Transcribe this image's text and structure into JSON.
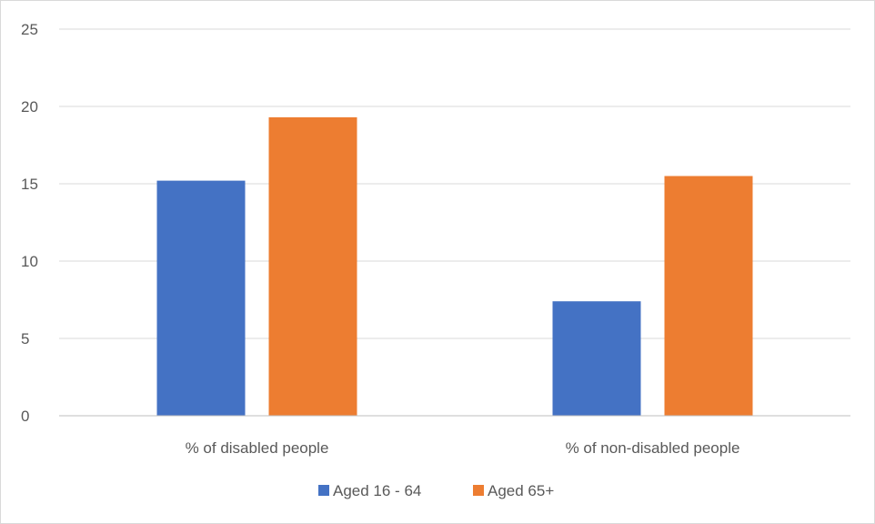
{
  "chart_data": {
    "type": "bar",
    "title": "",
    "xlabel": "",
    "ylabel": "",
    "categories": [
      "% of disabled people",
      "% of non-disabled people"
    ],
    "series": [
      {
        "name": "Aged 16 - 64",
        "color": "#4472C4",
        "values": [
          15.2,
          7.4
        ]
      },
      {
        "name": "Aged 65+",
        "color": "#ED7D31",
        "values": [
          19.3,
          15.5
        ]
      }
    ],
    "ylim": [
      0,
      25
    ],
    "yticks": [
      0,
      5,
      10,
      15,
      20,
      25
    ],
    "grid": true,
    "legend_position": "bottom",
    "gridline_color": "#d9d9d9",
    "axis_line_color": "#bfbfbf"
  }
}
